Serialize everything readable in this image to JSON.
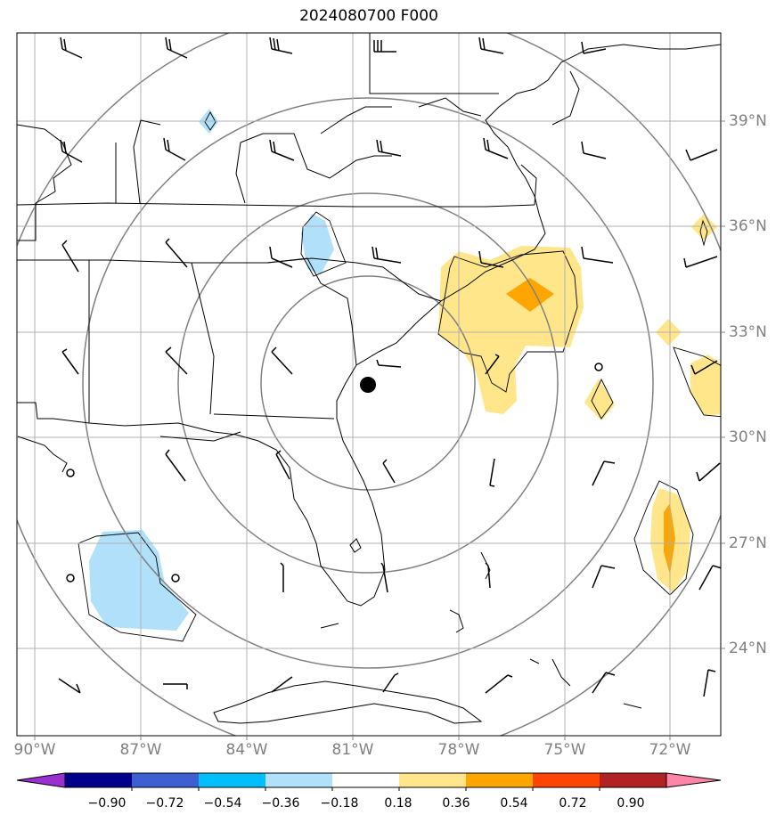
{
  "title": "2024080700 F000",
  "lon_labels": [
    "90°W",
    "87°W",
    "84°W",
    "81°W",
    "78°W",
    "75°W",
    "72°W"
  ],
  "lat_labels": [
    "39°N",
    "36°N",
    "33°N",
    "30°N",
    "27°N",
    "24°N"
  ],
  "colorbar": {
    "ticks": [
      "−0.90",
      "−0.72",
      "−0.54",
      "−0.36",
      "−0.18",
      "0.18",
      "0.36",
      "0.54",
      "0.72",
      "0.90"
    ],
    "colors": [
      "#9b30d0",
      "#00008b",
      "#3d5fcf",
      "#00bfff",
      "#b0e0fa",
      "#ffffff",
      "#ffe68a",
      "#ffa500",
      "#ff4500",
      "#b22222",
      "#ff85a8"
    ]
  },
  "storm_center": {
    "lon": -80.4,
    "lat": 31.4
  },
  "range_rings": "concentric circles around storm center"
}
